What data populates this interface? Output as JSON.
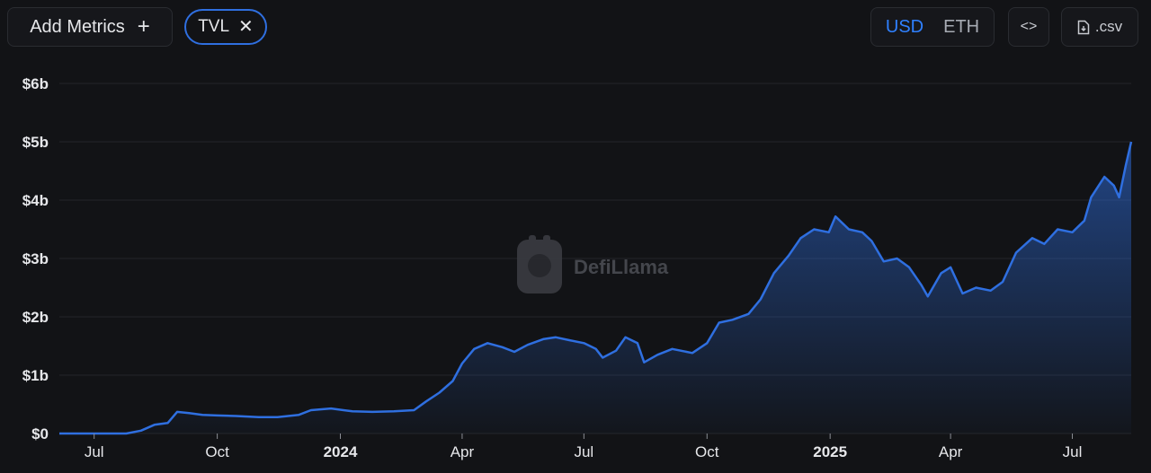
{
  "toolbar": {
    "add_metrics_label": "Add Metrics",
    "add_icon": "plus-icon",
    "metric_chip_label": "TVL",
    "remove_icon": "close-icon",
    "currency_options": [
      "USD",
      "ETH"
    ],
    "currency_selected": "USD",
    "embed_icon": "code-icon",
    "csv_label": ".csv",
    "csv_icon": "file-download-icon"
  },
  "colors": {
    "background": "#121316",
    "line": "#2f6fe0",
    "accent": "#2f80ff"
  },
  "watermark": {
    "text": "DefiLlama"
  },
  "chart_data": {
    "type": "area",
    "title": "",
    "xlabel": "",
    "ylabel": "",
    "series": [
      {
        "name": "TVL",
        "points": [
          [
            "2023-06-05",
            0.0
          ],
          [
            "2023-06-25",
            0.0
          ],
          [
            "2023-07-10",
            0.0
          ],
          [
            "2023-07-25",
            0.0
          ],
          [
            "2023-08-05",
            0.05
          ],
          [
            "2023-08-15",
            0.15
          ],
          [
            "2023-08-25",
            0.18
          ],
          [
            "2023-09-01",
            0.37
          ],
          [
            "2023-09-10",
            0.35
          ],
          [
            "2023-09-20",
            0.32
          ],
          [
            "2023-10-01",
            0.31
          ],
          [
            "2023-10-15",
            0.3
          ],
          [
            "2023-11-01",
            0.28
          ],
          [
            "2023-11-15",
            0.28
          ],
          [
            "2023-12-01",
            0.32
          ],
          [
            "2023-12-10",
            0.4
          ],
          [
            "2023-12-25",
            0.43
          ],
          [
            "2024-01-10",
            0.38
          ],
          [
            "2024-01-25",
            0.37
          ],
          [
            "2024-02-10",
            0.38
          ],
          [
            "2024-02-25",
            0.4
          ],
          [
            "2024-03-05",
            0.55
          ],
          [
            "2024-03-15",
            0.7
          ],
          [
            "2024-03-25",
            0.9
          ],
          [
            "2024-04-01",
            1.2
          ],
          [
            "2024-04-10",
            1.45
          ],
          [
            "2024-04-20",
            1.55
          ],
          [
            "2024-05-01",
            1.48
          ],
          [
            "2024-05-10",
            1.4
          ],
          [
            "2024-05-20",
            1.52
          ],
          [
            "2024-06-01",
            1.62
          ],
          [
            "2024-06-10",
            1.65
          ],
          [
            "2024-06-20",
            1.6
          ],
          [
            "2024-07-01",
            1.55
          ],
          [
            "2024-07-10",
            1.45
          ],
          [
            "2024-07-15",
            1.3
          ],
          [
            "2024-07-25",
            1.42
          ],
          [
            "2024-08-01",
            1.65
          ],
          [
            "2024-08-10",
            1.55
          ],
          [
            "2024-08-15",
            1.22
          ],
          [
            "2024-08-25",
            1.35
          ],
          [
            "2024-09-05",
            1.45
          ],
          [
            "2024-09-20",
            1.38
          ],
          [
            "2024-10-01",
            1.55
          ],
          [
            "2024-10-10",
            1.9
          ],
          [
            "2024-10-20",
            1.95
          ],
          [
            "2024-11-01",
            2.05
          ],
          [
            "2024-11-10",
            2.3
          ],
          [
            "2024-11-20",
            2.75
          ],
          [
            "2024-12-01",
            3.05
          ],
          [
            "2024-12-10",
            3.35
          ],
          [
            "2024-12-20",
            3.5
          ],
          [
            "2024-12-31",
            3.45
          ],
          [
            "2025-01-05",
            3.72
          ],
          [
            "2025-01-15",
            3.5
          ],
          [
            "2025-01-25",
            3.45
          ],
          [
            "2025-02-01",
            3.3
          ],
          [
            "2025-02-10",
            2.95
          ],
          [
            "2025-02-20",
            3.0
          ],
          [
            "2025-03-01",
            2.85
          ],
          [
            "2025-03-10",
            2.55
          ],
          [
            "2025-03-15",
            2.35
          ],
          [
            "2025-03-25",
            2.75
          ],
          [
            "2025-04-01",
            2.85
          ],
          [
            "2025-04-10",
            2.4
          ],
          [
            "2025-04-20",
            2.5
          ],
          [
            "2025-05-01",
            2.45
          ],
          [
            "2025-05-10",
            2.6
          ],
          [
            "2025-05-20",
            3.1
          ],
          [
            "2025-06-01",
            3.35
          ],
          [
            "2025-06-10",
            3.25
          ],
          [
            "2025-06-20",
            3.5
          ],
          [
            "2025-07-01",
            3.45
          ],
          [
            "2025-07-10",
            3.65
          ],
          [
            "2025-07-15",
            4.05
          ],
          [
            "2025-07-25",
            4.4
          ],
          [
            "2025-08-01",
            4.25
          ],
          [
            "2025-08-05",
            4.05
          ],
          [
            "2025-08-10",
            4.6
          ],
          [
            "2025-08-14",
            5.0
          ]
        ]
      }
    ],
    "x_start": "2023-06-05",
    "x_end": "2025-08-14",
    "x_ticks": [
      {
        "label": "Jul",
        "date": "2023-07-01",
        "bold": false
      },
      {
        "label": "Oct",
        "date": "2023-10-01",
        "bold": false
      },
      {
        "label": "2024",
        "date": "2024-01-01",
        "bold": true
      },
      {
        "label": "Apr",
        "date": "2024-04-01",
        "bold": false
      },
      {
        "label": "Jul",
        "date": "2024-07-01",
        "bold": false
      },
      {
        "label": "Oct",
        "date": "2024-10-01",
        "bold": false
      },
      {
        "label": "2025",
        "date": "2025-01-01",
        "bold": true
      },
      {
        "label": "Apr",
        "date": "2025-04-01",
        "bold": false
      },
      {
        "label": "Jul",
        "date": "2025-07-01",
        "bold": false
      }
    ],
    "y_ticks": [
      {
        "label": "$0",
        "value": 0
      },
      {
        "label": "$1b",
        "value": 1
      },
      {
        "label": "$2b",
        "value": 2
      },
      {
        "label": "$3b",
        "value": 3
      },
      {
        "label": "$4b",
        "value": 4
      },
      {
        "label": "$5b",
        "value": 5
      },
      {
        "label": "$6b",
        "value": 6
      }
    ],
    "ylim": [
      0,
      6
    ],
    "grid": true,
    "legend": "none"
  }
}
